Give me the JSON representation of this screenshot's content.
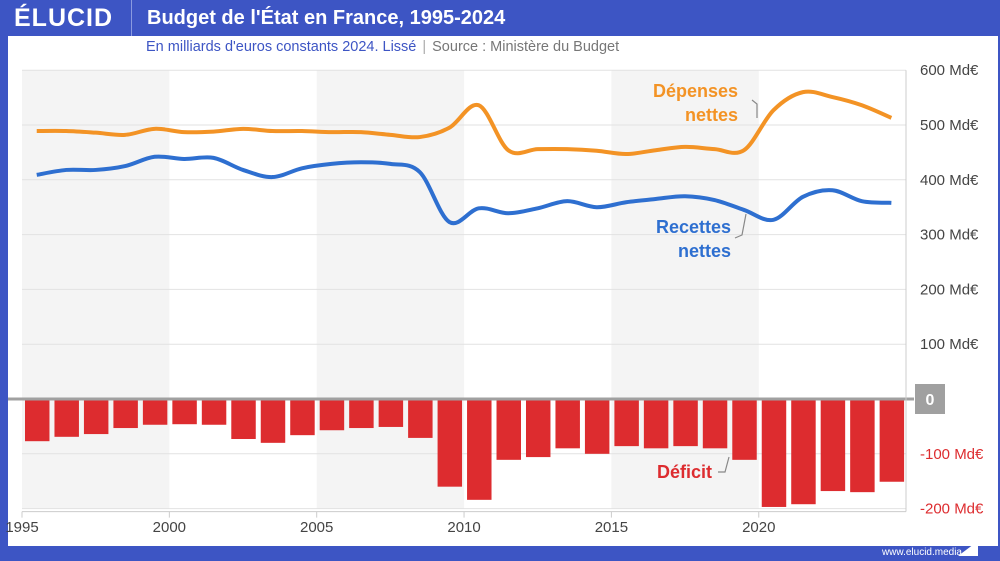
{
  "header": {
    "logo": "ÉLUCID",
    "title": "Budget de l'État en France, 1995-2024"
  },
  "subtitle": {
    "text": "En milliards d'euros constants 2024. Lissé",
    "separator": "|",
    "source": "Source : Ministère du Budget"
  },
  "footer": {
    "url": "www.elucid.media"
  },
  "colors": {
    "depenses": "#f39325",
    "recettes": "#2e6fd0",
    "deficit": "#dd2c2f",
    "brand": "#3d55c4"
  },
  "chart_data": {
    "type": "bar+line",
    "title": "Budget de l'État en France, 1995-2024",
    "x": [
      1995,
      1996,
      1997,
      1998,
      1999,
      2000,
      2001,
      2002,
      2003,
      2004,
      2005,
      2006,
      2007,
      2008,
      2009,
      2010,
      2011,
      2012,
      2013,
      2014,
      2015,
      2016,
      2017,
      2018,
      2019,
      2020,
      2021,
      2022,
      2023,
      2024
    ],
    "xticks": [
      "1995",
      "2000",
      "2005",
      "2010",
      "2015",
      "2020"
    ],
    "yticks": [
      {
        "v": 600,
        "label": "600 Md€"
      },
      {
        "v": 500,
        "label": "500 Md€"
      },
      {
        "v": 400,
        "label": "400 Md€"
      },
      {
        "v": 300,
        "label": "300 Md€"
      },
      {
        "v": 200,
        "label": "200 Md€"
      },
      {
        "v": 100,
        "label": "100 Md€"
      },
      {
        "v": 0,
        "label": "0"
      },
      {
        "v": -100,
        "label": "-100 Md€"
      },
      {
        "v": -200,
        "label": "-200 Md€"
      }
    ],
    "ylim": [
      -200,
      600
    ],
    "grid": true,
    "series": [
      {
        "name": "Dépenses nettes",
        "type": "line",
        "values": [
          489,
          489,
          486,
          482,
          493,
          487,
          488,
          493,
          489,
          489,
          487,
          487,
          482,
          478,
          495,
          536,
          454,
          456,
          456,
          453,
          447,
          454,
          460,
          456,
          454,
          527,
          560,
          551,
          536,
          513
        ]
      },
      {
        "name": "Recettes nettes",
        "type": "line",
        "values": [
          409,
          418,
          418,
          425,
          442,
          438,
          440,
          418,
          405,
          421,
          429,
          432,
          429,
          414,
          323,
          348,
          339,
          348,
          361,
          350,
          359,
          365,
          370,
          363,
          345,
          327,
          369,
          381,
          361,
          358
        ]
      },
      {
        "name": "Déficit",
        "type": "bar",
        "values": [
          -77,
          -69,
          -64,
          -53,
          -47,
          -46,
          -47,
          -73,
          -80,
          -66,
          -57,
          -53,
          -51,
          -71,
          -160,
          -184,
          -111,
          -106,
          -90,
          -100,
          -86,
          -90,
          -86,
          -90,
          -111,
          -197,
          -192,
          -168,
          -170,
          -151
        ]
      }
    ],
    "labels": {
      "depenses": [
        "Dépenses",
        "nettes"
      ],
      "recettes": [
        "Recettes",
        "nettes"
      ],
      "deficit": "Déficit"
    }
  }
}
